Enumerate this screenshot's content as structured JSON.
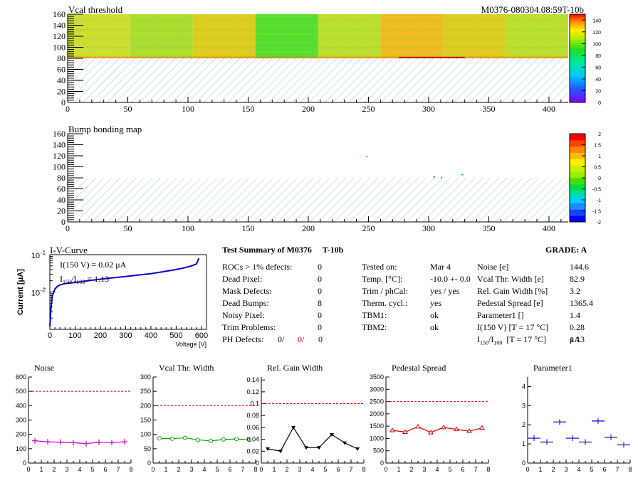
{
  "header": {
    "vcal_title": "Vcal threshold",
    "module_id": "M0376-080304.08:59T-10b",
    "bump_title": "Bump bonding map"
  },
  "colors": {
    "axis": "#000000",
    "hatch": "#9fc8c8",
    "iv_curve": "#0000cc",
    "noise": "#cc00cc",
    "vcal": "#00aa00",
    "gain": "#000000",
    "pedestal": "#cc0000",
    "param1": "#0000cc",
    "limit": "#cc0000"
  },
  "maps": {
    "x_ticks": [
      "0",
      "50",
      "100",
      "150",
      "200",
      "250",
      "300",
      "350",
      "400"
    ],
    "y_ticks": [
      "0",
      "20",
      "40",
      "60",
      "80",
      "100",
      "120",
      "140",
      "160"
    ],
    "vcal_scale": [
      "0",
      "20",
      "40",
      "60",
      "80",
      "100",
      "120",
      "140"
    ],
    "bump_scale": [
      "-2",
      "-1.5",
      "-1",
      "-0.5",
      "0",
      "0.5",
      "1",
      "1.5",
      "2"
    ]
  },
  "iv": {
    "title": "I-V-Curve",
    "ylabel": "Current [μA]",
    "xlabel": "Voltage [V]",
    "y_top": "10",
    "y_top_exp": "-1",
    "y_mid": "10",
    "y_mid_exp": "-2",
    "x_ticks": [
      "0",
      "100",
      "200",
      "300",
      "400",
      "500",
      "600"
    ],
    "annot1": "I(150 V) = 0.02 μA",
    "annot2_a": "I",
    "annot2_sub1": "150",
    "annot2_b": "/I",
    "annot2_sub2": "100",
    "annot2_c": "  =  1.13"
  },
  "summary": {
    "title": "Test Summary of M0376",
    "tag": "T-10b",
    "grade": "GRADE:  A",
    "left_rows": [
      {
        "label": "ROCs > 1% defects:",
        "value": "0"
      },
      {
        "label": "Dead Pixel:",
        "value": "0"
      },
      {
        "label": "Mask Defects:",
        "value": "0"
      },
      {
        "label": "Dead Bumps:",
        "value": "8"
      },
      {
        "label": "Noisy Pixel:",
        "value": "0"
      },
      {
        "label": "Trim Problems:",
        "value": "0"
      }
    ],
    "ph_label": "PH Defects:",
    "ph_v1": "0/",
    "ph_v2": "0/",
    "ph_v3": "0",
    "mid_rows": [
      {
        "label": "Tested on:",
        "value": "Mar 4"
      },
      {
        "label": "Temp. [°C]:",
        "value": "-10.0 +- 0.0"
      },
      {
        "label": "Trim / phCal:",
        "value": "yes / yes"
      },
      {
        "label": "Therm. cycl.:",
        "value": "yes"
      },
      {
        "label": "TBM1:",
        "value": "ok"
      },
      {
        "label": "TBM2:",
        "value": "ok"
      }
    ],
    "right_rows": [
      {
        "label": "Noise [e]",
        "value": "144.6"
      },
      {
        "label": "Vcal Thr. Width [e]",
        "value": "82.9"
      },
      {
        "label": "Rel. Gain Width [%]",
        "value": "3.2"
      },
      {
        "label": "Pedestal Spread [e]",
        "value": "1365.4"
      },
      {
        "label": "Parameter1 []",
        "value": "1.4"
      },
      {
        "label": "I(150 V) [T = 17 °C]",
        "value": "0.28 μA"
      }
    ],
    "ratio_a": "I",
    "ratio_sub1": "150",
    "ratio_b": "/I",
    "ratio_sub2": "100",
    "ratio_c": "  [T = 17 °C]",
    "ratio_value": "1.13"
  },
  "chart_data": [
    {
      "type": "heatmap",
      "title": "Vcal threshold",
      "xlim": [
        0,
        416
      ],
      "ylim": [
        0,
        160
      ],
      "filled_y_range": [
        80,
        160
      ],
      "z_range": [
        0,
        150
      ],
      "note": "16 ROC blocks filled only in upper half"
    },
    {
      "type": "heatmap",
      "title": "Bump bonding map",
      "xlim": [
        0,
        416
      ],
      "ylim": [
        0,
        160
      ],
      "z_range": [
        -2,
        2
      ]
    },
    {
      "type": "line",
      "title": "I-V-Curve",
      "xlabel": "Voltage [V]",
      "ylabel": "Current [μA]",
      "log_y": true,
      "xlim": [
        0,
        620
      ],
      "ylim": [
        0.001,
        0.1
      ],
      "x": [
        0,
        5,
        10,
        20,
        30,
        40,
        60,
        80,
        100,
        150,
        200,
        250,
        300,
        350,
        400,
        450,
        500,
        530,
        560,
        580,
        590
      ],
      "y": [
        0.0012,
        0.004,
        0.008,
        0.012,
        0.014,
        0.0155,
        0.0168,
        0.0175,
        0.018,
        0.02,
        0.022,
        0.024,
        0.026,
        0.0285,
        0.031,
        0.035,
        0.04,
        0.044,
        0.05,
        0.056,
        0.08
      ]
    },
    {
      "type": "line",
      "title": "Noise",
      "xlim": [
        0,
        8
      ],
      "ylim": [
        0,
        600
      ],
      "y_ticks": [
        "0",
        "100",
        "200",
        "300",
        "400",
        "500",
        "600"
      ],
      "limit": 500,
      "x": [
        0.5,
        1.5,
        2.5,
        3.5,
        4.5,
        5.5,
        6.5,
        7.5
      ],
      "y": [
        155,
        148,
        146,
        142,
        136,
        145,
        143,
        148
      ]
    },
    {
      "type": "line",
      "title": "Vcal Thr. Width",
      "xlim": [
        0,
        8
      ],
      "ylim": [
        0,
        300
      ],
      "y_ticks": [
        "0",
        "50",
        "100",
        "150",
        "200",
        "250",
        "300"
      ],
      "limit": 200,
      "x": [
        0.5,
        1.5,
        2.5,
        3.5,
        4.5,
        5.5,
        6.5,
        7.5
      ],
      "y": [
        86,
        85,
        88,
        81,
        77,
        82,
        84,
        81
      ]
    },
    {
      "type": "line",
      "title": "Rel. Gain Width",
      "xlim": [
        0,
        8
      ],
      "ylim": [
        0,
        0.145
      ],
      "y_ticks": [
        "0",
        "0.02",
        "0.04",
        "0.06",
        "0.08",
        "0.1",
        "0.12",
        "0.14"
      ],
      "limit": 0.1,
      "x": [
        0.5,
        1.5,
        2.5,
        3.5,
        4.5,
        5.5,
        6.5,
        7.5
      ],
      "y": [
        0.024,
        0.02,
        0.06,
        0.026,
        0.026,
        0.048,
        0.034,
        0.024
      ]
    },
    {
      "type": "line",
      "title": "Pedestal Spread",
      "xlim": [
        0,
        8
      ],
      "ylim": [
        0,
        3500
      ],
      "y_ticks": [
        "0",
        "500",
        "1000",
        "1500",
        "2000",
        "2500",
        "3000",
        "3500"
      ],
      "limit": 2500,
      "x": [
        0.5,
        1.5,
        2.5,
        3.5,
        4.5,
        5.5,
        6.5,
        7.5
      ],
      "y": [
        1330,
        1260,
        1480,
        1240,
        1450,
        1370,
        1300,
        1430
      ]
    },
    {
      "type": "scatter",
      "title": "Parameter1",
      "xlim": [
        0,
        8
      ],
      "ylim": [
        0,
        4.5
      ],
      "y_ticks": [
        "0",
        "1",
        "2",
        "3",
        "4"
      ],
      "x": [
        0.5,
        1.5,
        2.5,
        3.5,
        4.5,
        5.5,
        6.5,
        7.5
      ],
      "y": [
        1.3,
        1.1,
        2.15,
        1.3,
        1.1,
        2.2,
        1.35,
        0.95
      ]
    }
  ]
}
